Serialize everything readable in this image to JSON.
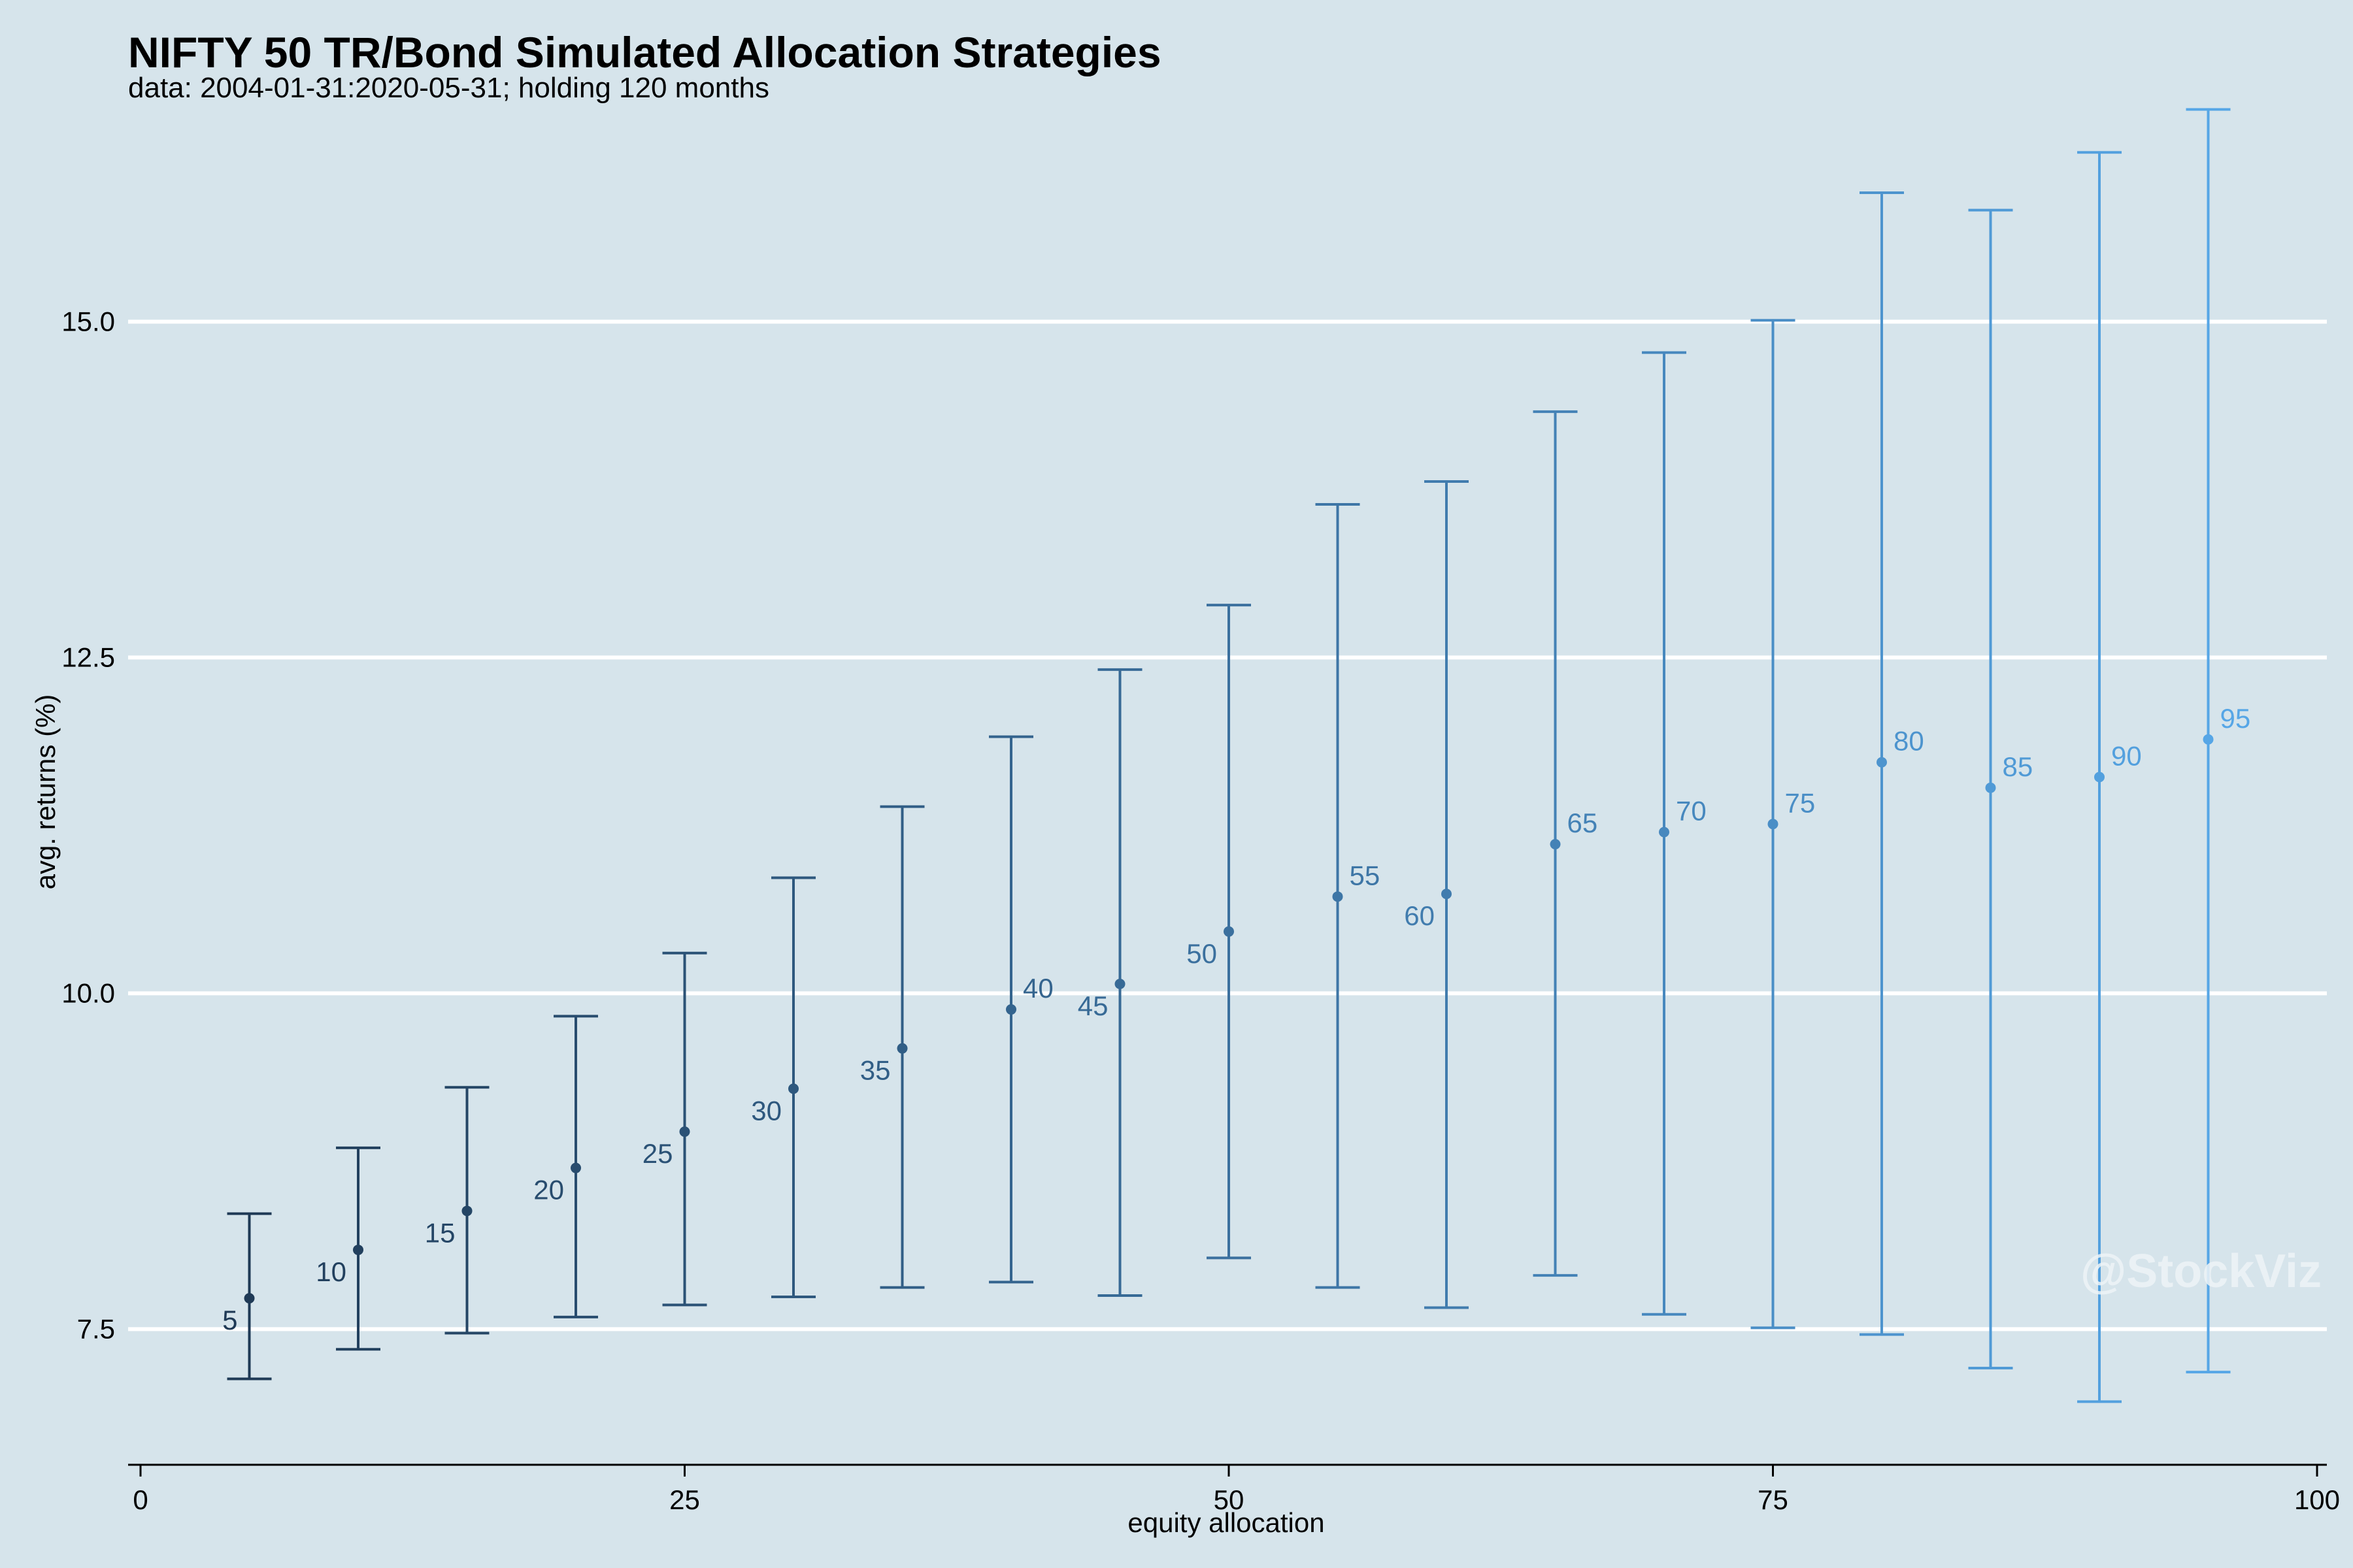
{
  "chart_data": {
    "type": "errorbar",
    "title": "NIFTY 50 TR/Bond Simulated Allocation Strategies",
    "subtitle": "data: 2004-01-31:2020-05-31; holding 120 months",
    "xlabel": "equity allocation",
    "ylabel": "avg. returns (%)",
    "watermark": "@StockViz",
    "xlim": [
      0,
      100
    ],
    "ylim": [
      6.5,
      17.2
    ],
    "x_ticks": [
      0,
      25,
      50,
      75,
      100
    ],
    "x_tick_labels": [
      "0",
      "25",
      "50",
      "75",
      "100"
    ],
    "y_ticks": [
      7.5,
      10.0,
      12.5,
      15.0
    ],
    "y_tick_labels": [
      "7.5",
      "10.0",
      "12.5",
      "15.0"
    ],
    "grid": "horizontal",
    "color_low": "#1f3a56",
    "color_high": "#56a6e6",
    "points": [
      {
        "x": 5,
        "label": "5",
        "mean": 7.73,
        "low": 7.13,
        "high": 8.36,
        "label_side": "left"
      },
      {
        "x": 10,
        "label": "10",
        "mean": 8.09,
        "low": 7.35,
        "high": 8.85,
        "label_side": "left"
      },
      {
        "x": 15,
        "label": "15",
        "mean": 8.38,
        "low": 7.47,
        "high": 9.3,
        "label_side": "left"
      },
      {
        "x": 20,
        "label": "20",
        "mean": 8.7,
        "low": 7.59,
        "high": 9.83,
        "label_side": "left"
      },
      {
        "x": 25,
        "label": "25",
        "mean": 8.97,
        "low": 7.68,
        "high": 10.3,
        "label_side": "left"
      },
      {
        "x": 30,
        "label": "30",
        "mean": 9.29,
        "low": 7.74,
        "high": 10.86,
        "label_side": "left"
      },
      {
        "x": 35,
        "label": "35",
        "mean": 9.59,
        "low": 7.81,
        "high": 11.39,
        "label_side": "left"
      },
      {
        "x": 40,
        "label": "40",
        "mean": 9.88,
        "low": 7.85,
        "high": 11.91,
        "label_side": "right"
      },
      {
        "x": 45,
        "label": "45",
        "mean": 10.07,
        "low": 7.75,
        "high": 12.41,
        "label_side": "left"
      },
      {
        "x": 50,
        "label": "50",
        "mean": 10.46,
        "low": 8.03,
        "high": 12.89,
        "label_side": "left"
      },
      {
        "x": 55,
        "label": "55",
        "mean": 10.72,
        "low": 7.81,
        "high": 13.64,
        "label_side": "right"
      },
      {
        "x": 60,
        "label": "60",
        "mean": 10.74,
        "low": 7.66,
        "high": 13.81,
        "label_side": "left"
      },
      {
        "x": 65,
        "label": "65",
        "mean": 11.11,
        "low": 7.9,
        "high": 14.33,
        "label_side": "right"
      },
      {
        "x": 70,
        "label": "70",
        "mean": 11.2,
        "low": 7.61,
        "high": 14.77,
        "label_side": "right"
      },
      {
        "x": 75,
        "label": "75",
        "mean": 11.26,
        "low": 7.51,
        "high": 15.01,
        "label_side": "right"
      },
      {
        "x": 80,
        "label": "80",
        "mean": 11.72,
        "low": 7.46,
        "high": 15.96,
        "label_side": "right"
      },
      {
        "x": 85,
        "label": "85",
        "mean": 11.53,
        "low": 7.21,
        "high": 15.83,
        "label_side": "right"
      },
      {
        "x": 90,
        "label": "90",
        "mean": 11.61,
        "low": 6.96,
        "high": 16.26,
        "label_side": "right"
      },
      {
        "x": 95,
        "label": "95",
        "mean": 11.89,
        "low": 7.18,
        "high": 16.58,
        "label_side": "right"
      }
    ]
  }
}
